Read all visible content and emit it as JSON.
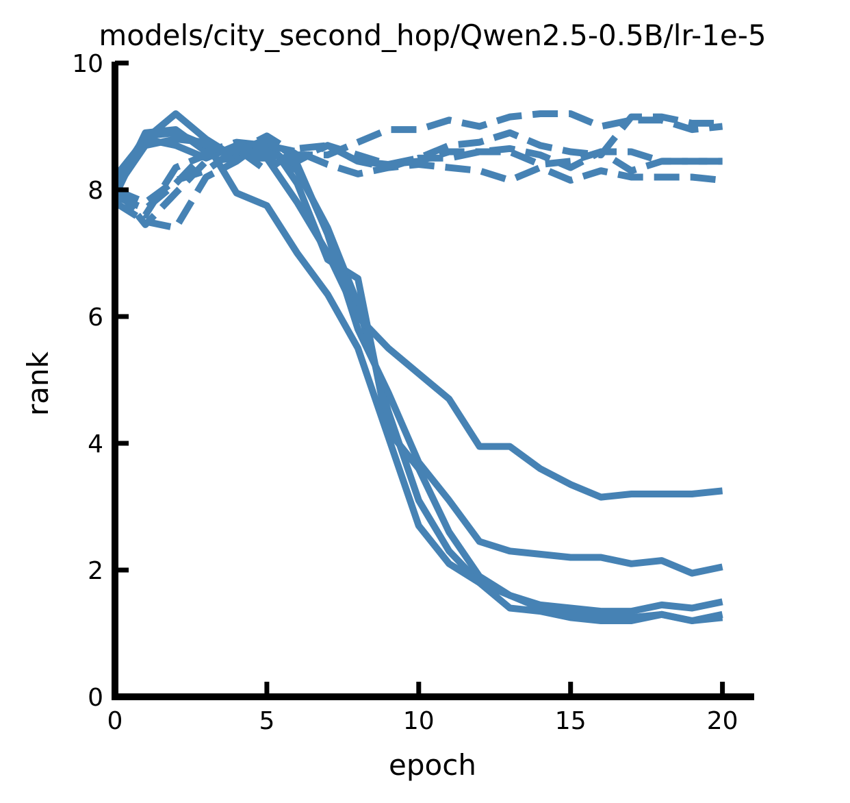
{
  "chart_data": {
    "type": "line",
    "title": "models/city_second_hop/Qwen2.5-0.5B/lr-1e-5",
    "xlabel": "epoch",
    "ylabel": "rank",
    "xlim": [
      0,
      21
    ],
    "ylim": [
      0,
      10
    ],
    "xticks": [
      "0",
      "5",
      "10",
      "15",
      "20"
    ],
    "yticks": [
      "0",
      "2",
      "4",
      "6",
      "8",
      "10"
    ],
    "grid": false,
    "legend": "none",
    "color": "#4682b4",
    "x": [
      0,
      1,
      2,
      3,
      4,
      5,
      6,
      7,
      8,
      9,
      10,
      11,
      12,
      13,
      14,
      15,
      16,
      17,
      18,
      19,
      20
    ],
    "series": [
      {
        "style": "solid",
        "values": [
          8.0,
          8.8,
          9.2,
          8.8,
          8.5,
          8.7,
          8.3,
          7.4,
          6.2,
          4.5,
          3.1,
          2.3,
          1.8,
          1.4,
          1.35,
          1.25,
          1.2,
          1.2,
          1.3,
          1.2,
          1.25
        ]
      },
      {
        "style": "solid",
        "values": [
          7.9,
          8.9,
          8.95,
          8.6,
          8.6,
          8.8,
          8.1,
          6.9,
          6.6,
          4.2,
          3.6,
          2.6,
          1.9,
          1.6,
          1.4,
          1.3,
          1.25,
          1.25,
          1.3,
          1.2,
          1.3
        ]
      },
      {
        "style": "solid",
        "values": [
          8.2,
          8.8,
          8.7,
          8.5,
          8.7,
          8.5,
          7.8,
          7.0,
          6.0,
          5.5,
          5.1,
          4.7,
          3.95,
          3.95,
          3.6,
          3.35,
          3.15,
          3.2,
          3.2,
          3.2,
          3.25
        ]
      },
      {
        "style": "solid",
        "values": [
          8.1,
          8.85,
          8.9,
          8.7,
          8.55,
          8.6,
          8.4,
          7.3,
          5.8,
          4.8,
          3.7,
          3.1,
          2.45,
          2.3,
          2.25,
          2.2,
          2.2,
          2.1,
          2.15,
          1.95,
          2.05
        ]
      },
      {
        "style": "solid",
        "values": [
          8.0,
          8.7,
          8.8,
          8.75,
          7.95,
          7.75,
          7.0,
          6.35,
          5.5,
          4.1,
          2.7,
          2.1,
          1.8,
          1.6,
          1.45,
          1.4,
          1.35,
          1.35,
          1.45,
          1.4,
          1.5
        ]
      },
      {
        "style": "dashed",
        "values": [
          7.9,
          7.7,
          8.1,
          8.6,
          8.75,
          8.7,
          8.6,
          8.4,
          8.25,
          8.35,
          8.4,
          8.35,
          8.3,
          8.15,
          8.35,
          8.15,
          8.3,
          8.2,
          8.2,
          8.2,
          8.15
        ]
      },
      {
        "style": "dashed",
        "values": [
          7.95,
          7.6,
          8.35,
          8.55,
          8.6,
          8.85,
          8.55,
          8.55,
          8.75,
          8.95,
          8.95,
          9.1,
          9.0,
          9.15,
          9.2,
          9.2,
          9.0,
          9.1,
          9.1,
          8.95,
          9.0
        ]
      },
      {
        "style": "dashed",
        "values": [
          8.05,
          7.45,
          7.95,
          8.45,
          8.5,
          8.5,
          8.45,
          8.7,
          8.55,
          8.4,
          8.5,
          8.7,
          8.75,
          8.9,
          8.7,
          8.6,
          8.55,
          9.15,
          9.15,
          9.05,
          9.05
        ]
      },
      {
        "style": "dashed",
        "values": [
          7.8,
          7.5,
          7.4,
          8.2,
          8.45,
          8.8,
          8.5,
          8.7,
          8.45,
          8.35,
          8.5,
          8.5,
          8.6,
          8.65,
          8.55,
          8.35,
          8.6,
          8.6,
          8.45,
          8.45,
          8.45
        ]
      },
      {
        "style": "dashed",
        "values": [
          8.0,
          7.8,
          8.15,
          8.3,
          8.65,
          8.3,
          8.65,
          8.7,
          8.45,
          8.4,
          8.45,
          8.6,
          8.6,
          8.6,
          8.4,
          8.45,
          8.6,
          8.3,
          8.45,
          8.45,
          8.45
        ]
      }
    ]
  }
}
